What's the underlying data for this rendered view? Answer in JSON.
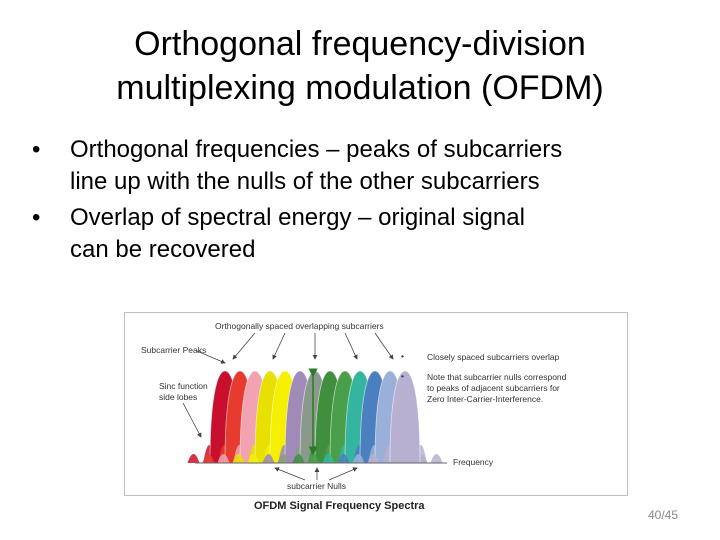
{
  "slide": {
    "title_line1": "Orthogonal frequency-division",
    "title_line2": "multiplexing modulation (OFDM)",
    "bullets": [
      {
        "line1": "Orthogonal frequencies – peaks of subcarriers",
        "line2": "line up with the nulls of the other subcarriers"
      },
      {
        "line1": "Overlap of spectral energy – original signal",
        "line2": "can be recovered"
      }
    ],
    "page_number": "40/45"
  },
  "figure": {
    "caption": "OFDM Signal Frequency Spectra",
    "labels": {
      "overlapping": "Orthogonally spaced overlapping subcarriers",
      "peaks": "Subcarrier Peaks",
      "sinc_line1": "Sinc function",
      "sinc_line2": "side lobes",
      "frequency": "Frequency",
      "nulls": "subcarrier Nulls"
    },
    "notes": {
      "note1": "Closely spaced subcarriers overlap",
      "note2_line1": "Note that subcarrier nulls correspond",
      "note2_line2": "to peaks of adjacent subcarriers for",
      "note2_line3": "Zero Inter-Carrier-Interference."
    },
    "subcarrier_colors": [
      "#c8102e",
      "#e63b2e",
      "#f2a2b0",
      "#e8e000",
      "#f4f000",
      "#a08ab8",
      "#8a9a8a",
      "#3f8f3f",
      "#4aa04a",
      "#33b5a0",
      "#4a7fc0",
      "#9ab0d8",
      "#b8b0d0"
    ]
  }
}
